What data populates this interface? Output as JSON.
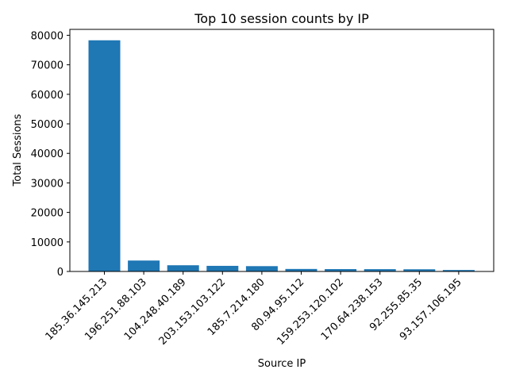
{
  "chart_data": {
    "type": "bar",
    "title": "Top 10 session counts by IP",
    "xlabel": "Source IP",
    "ylabel": "Total Sessions",
    "categories": [
      "185.36.145.213",
      "196.251.88.103",
      "104.248.40.189",
      "203.153.103.122",
      "185.7.214.180",
      "80.94.95.112",
      "159.253.120.102",
      "170.64.238.153",
      "92.255.85.35",
      "93.157.106.195"
    ],
    "values": [
      78300,
      3700,
      2100,
      1900,
      1800,
      850,
      800,
      780,
      740,
      500
    ],
    "ylim": [
      0,
      82000
    ],
    "yticks": [
      0,
      10000,
      20000,
      30000,
      40000,
      50000,
      60000,
      70000,
      80000
    ],
    "grid": false,
    "bar_color": "#1f77b4"
  }
}
